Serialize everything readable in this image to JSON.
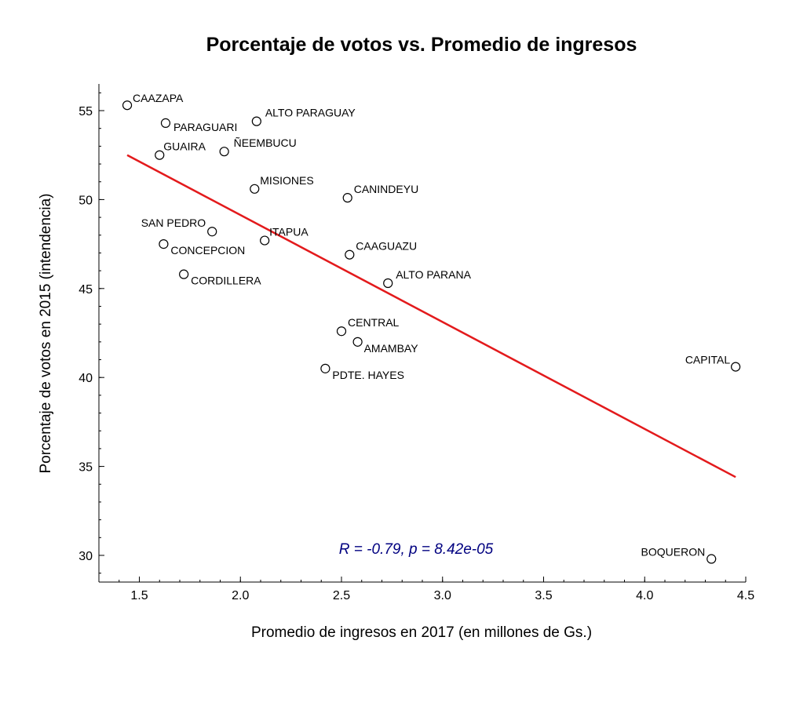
{
  "chart_data": {
    "type": "scatter",
    "title": "Porcentaje de votos vs. Promedio de ingresos",
    "xlabel": "Promedio de ingresos en 2017 (en millones de Gs.)",
    "ylabel": "Porcentaje de votos en 2015 (intendencia)",
    "xlim": [
      1.3,
      4.5
    ],
    "ylim": [
      28.5,
      56.5
    ],
    "xticks": [
      1.5,
      2.0,
      2.5,
      3.0,
      3.5,
      4.0,
      4.5
    ],
    "xtick_labels": [
      "1.5",
      "2.0",
      "2.5",
      "3.0",
      "3.5",
      "4.0",
      "4.5"
    ],
    "yticks": [
      30,
      35,
      40,
      45,
      50,
      55
    ],
    "ytick_labels": [
      "30",
      "35",
      "40",
      "45",
      "50",
      "55"
    ],
    "grid": false,
    "points": [
      {
        "label": "CAAZAPA",
        "x": 1.44,
        "y": 55.3
      },
      {
        "label": "PARAGUARI",
        "x": 1.63,
        "y": 54.3
      },
      {
        "label": "ALTO PARAGUAY",
        "x": 2.08,
        "y": 54.4
      },
      {
        "label": "GUAIRA",
        "x": 1.6,
        "y": 52.5
      },
      {
        "label": "ÑEEMBUCU",
        "x": 1.92,
        "y": 52.7
      },
      {
        "label": "MISIONES",
        "x": 2.07,
        "y": 50.6
      },
      {
        "label": "CANINDEYU",
        "x": 2.53,
        "y": 50.1
      },
      {
        "label": "SAN PEDRO",
        "x": 1.86,
        "y": 48.2
      },
      {
        "label": "ITAPUA",
        "x": 2.12,
        "y": 47.7
      },
      {
        "label": "CONCEPCION",
        "x": 1.62,
        "y": 47.5
      },
      {
        "label": "CAAGUAZU",
        "x": 2.54,
        "y": 46.9
      },
      {
        "label": "CORDILLERA",
        "x": 1.72,
        "y": 45.8
      },
      {
        "label": "ALTO PARANA",
        "x": 2.73,
        "y": 45.3
      },
      {
        "label": "CENTRAL",
        "x": 2.5,
        "y": 42.6
      },
      {
        "label": "AMAMBAY",
        "x": 2.58,
        "y": 42.0
      },
      {
        "label": "PDTE. HAYES",
        "x": 2.42,
        "y": 40.5
      },
      {
        "label": "CAPITAL",
        "x": 4.45,
        "y": 40.6
      },
      {
        "label": "BOQUERON",
        "x": 4.33,
        "y": 29.8
      }
    ],
    "regression_line": {
      "x": [
        1.44,
        4.45
      ],
      "y": [
        52.5,
        34.4
      ],
      "color": "#e31a1c"
    },
    "annotation": {
      "text": "R = -0.79, p = 8.42e-05",
      "color": "#000080"
    },
    "marker_color": "#000000"
  }
}
